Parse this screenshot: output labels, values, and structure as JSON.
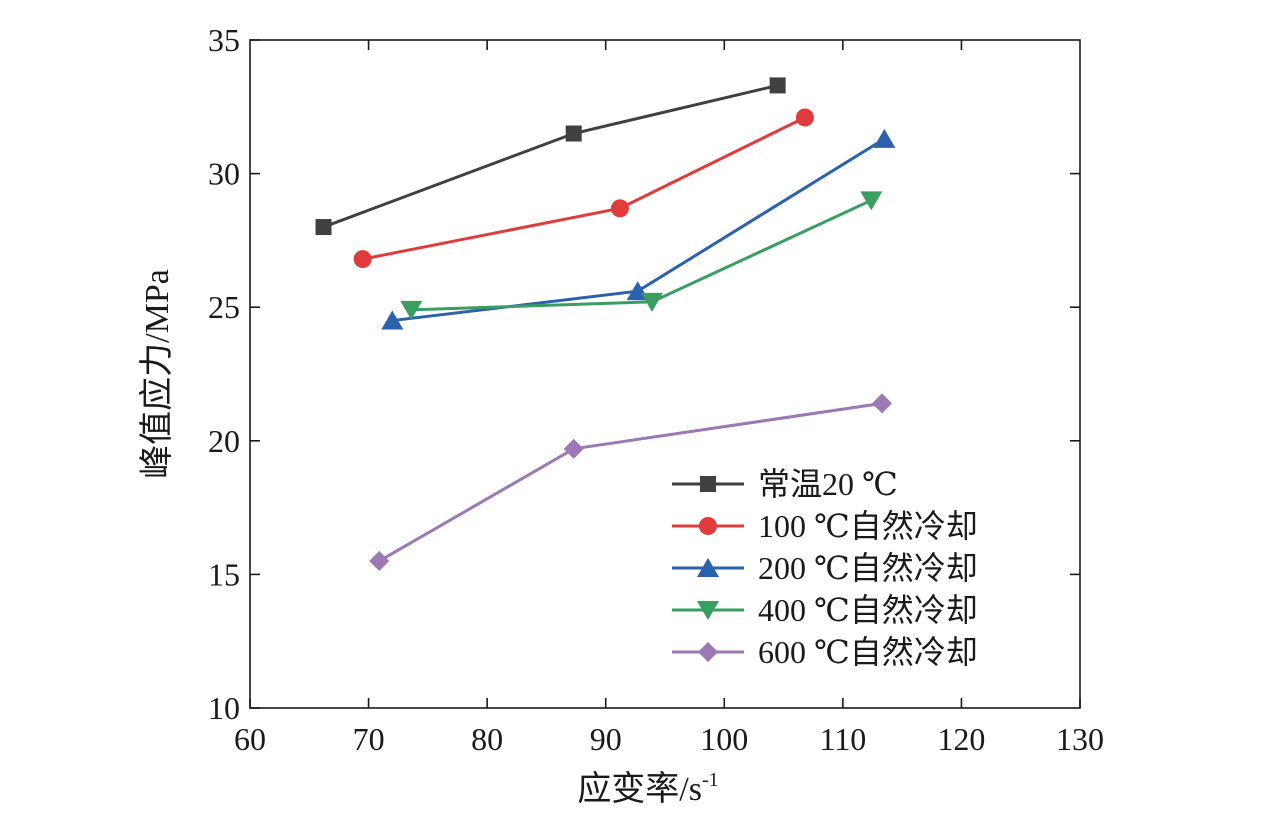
{
  "chart_data": {
    "type": "line",
    "xlabel": "应变率/s",
    "xlabel_sup": "-1",
    "ylabel": "峰值应力/MPa",
    "xlim": [
      60,
      130
    ],
    "ylim": [
      10,
      35
    ],
    "xticks": [
      60,
      70,
      80,
      90,
      100,
      110,
      120,
      130
    ],
    "yticks": [
      10,
      15,
      20,
      25,
      30,
      35
    ],
    "grid": false,
    "legend_position": "bottom-right",
    "series": [
      {
        "name": "常温20 ℃",
        "color": "#404040",
        "marker": "square",
        "x": [
          66.2,
          87.3,
          104.5
        ],
        "y": [
          28.0,
          31.5,
          33.3
        ]
      },
      {
        "name": "100 ℃自然冷却",
        "color": "#e03c3c",
        "marker": "circle",
        "x": [
          69.5,
          91.2,
          106.8
        ],
        "y": [
          26.8,
          28.7,
          32.1
        ]
      },
      {
        "name": "200 ℃自然冷却",
        "color": "#2b62ad",
        "marker": "triangle-up",
        "x": [
          72.0,
          92.7,
          113.5
        ],
        "y": [
          24.5,
          25.6,
          31.3
        ]
      },
      {
        "name": "400 ℃自然冷却",
        "color": "#3a9e60",
        "marker": "triangle-down",
        "x": [
          73.6,
          93.9,
          112.4
        ],
        "y": [
          24.9,
          25.2,
          29.0
        ]
      },
      {
        "name": "600 ℃自然冷却",
        "color": "#9c78b4",
        "marker": "diamond",
        "x": [
          70.9,
          87.3,
          113.3
        ],
        "y": [
          15.5,
          19.7,
          21.4
        ]
      }
    ]
  }
}
